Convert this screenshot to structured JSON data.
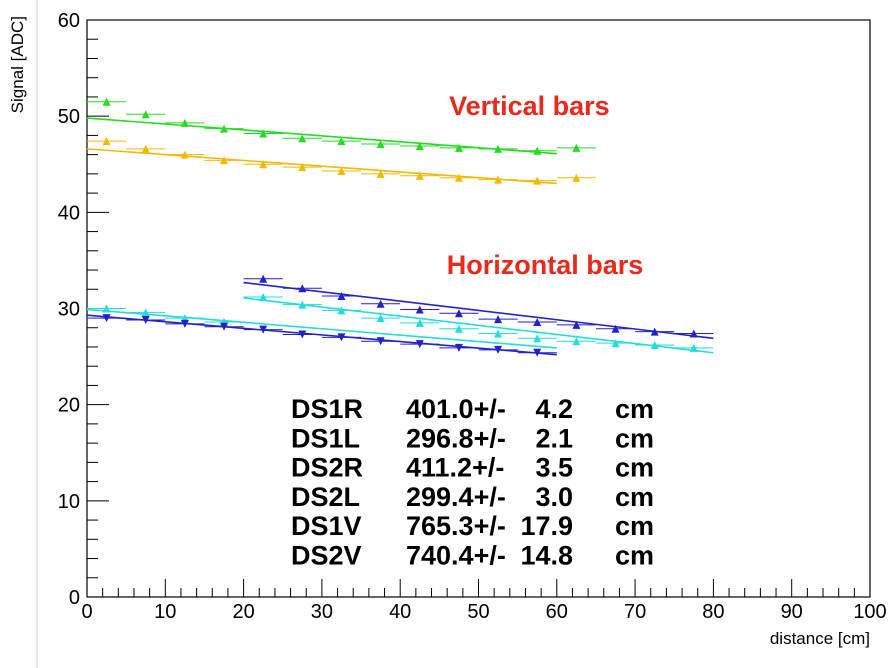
{
  "chart_data": {
    "type": "scatter",
    "xlabel": "distance [cm]",
    "ylabel": "Signal [ADC]",
    "xlim": [
      0,
      100
    ],
    "ylim": [
      0,
      60
    ],
    "x_ticks": [
      "0",
      "10",
      "20",
      "30",
      "40",
      "50",
      "60",
      "70",
      "80",
      "90",
      "100"
    ],
    "y_ticks": [
      "0",
      "10",
      "20",
      "30",
      "40",
      "50",
      "60"
    ],
    "grid": false,
    "series": [
      {
        "color": "#22dd22",
        "marker": "triangle-up",
        "x": [
          2.5,
          7.5,
          12.5,
          17.5,
          22.5,
          27.5,
          32.5,
          37.5,
          42.5,
          47.5,
          52.5,
          57.5,
          62.5
        ],
        "y": [
          51.5,
          50.2,
          49.3,
          48.7,
          48.2,
          47.7,
          47.4,
          47.1,
          46.9,
          46.7,
          46.6,
          46.4,
          46.7
        ],
        "fit": {
          "x": [
            0,
            60
          ],
          "y": [
            49.8,
            46.1
          ]
        }
      },
      {
        "color": "#f5b800",
        "marker": "triangle-up",
        "x": [
          2.5,
          7.5,
          12.5,
          17.5,
          22.5,
          27.5,
          32.5,
          37.5,
          42.5,
          47.5,
          52.5,
          57.5,
          62.5
        ],
        "y": [
          47.4,
          46.6,
          46.0,
          45.4,
          45.0,
          44.7,
          44.3,
          44.0,
          43.8,
          43.6,
          43.4,
          43.3,
          43.6
        ],
        "fit": {
          "x": [
            0,
            60
          ],
          "y": [
            46.6,
            43.0
          ]
        }
      },
      {
        "color": "#2222cc",
        "marker": "triangle-up",
        "x": [
          22.5,
          27.5,
          32.5,
          37.5,
          42.5,
          47.5,
          52.5,
          57.5,
          62.5,
          67.5,
          72.5,
          77.5
        ],
        "y": [
          33.1,
          32.1,
          31.3,
          30.5,
          29.9,
          29.5,
          28.9,
          28.6,
          28.3,
          27.9,
          27.6,
          27.4
        ],
        "fit": {
          "x": [
            20,
            80
          ],
          "y": [
            32.7,
            26.9
          ]
        }
      },
      {
        "color": "#22dddd",
        "marker": "triangle-up",
        "x": [
          2.5,
          7.5,
          12.5,
          17.5,
          22.5,
          27.5,
          32.5,
          37.5,
          42.5,
          47.5,
          52.5,
          57.5,
          62.5,
          67.5,
          72.5,
          77.5
        ],
        "y": [
          30.0,
          29.6,
          29.0,
          28.6,
          31.2,
          30.4,
          29.8,
          29.0,
          28.5,
          27.9,
          27.4,
          26.9,
          26.6,
          26.4,
          26.2,
          25.9
        ],
        "fit_segments": [
          {
            "x": [
              0,
              60
            ],
            "y": [
              29.9,
              25.9
            ]
          },
          {
            "x": [
              20,
              80
            ],
            "y": [
              31.1,
              25.4
            ]
          }
        ]
      },
      {
        "color": "#2222cc",
        "marker": "triangle-down",
        "x": [
          2.5,
          7.5,
          12.5,
          17.5,
          22.5,
          27.5,
          32.5,
          37.5,
          42.5,
          47.5,
          52.5,
          57.5
        ],
        "y": [
          29.0,
          28.8,
          28.4,
          28.1,
          27.8,
          27.3,
          27.0,
          26.6,
          26.3,
          25.9,
          25.7,
          25.4
        ],
        "fit": {
          "x": [
            0,
            60
          ],
          "y": [
            29.3,
            25.2
          ]
        }
      }
    ],
    "annotations": [
      {
        "text": "Vertical bars",
        "x": 56.5,
        "y": 50.1
      },
      {
        "text": "Horizontal bars",
        "x": 58.5,
        "y": 33.6
      }
    ],
    "table": [
      {
        "name": "DS1R",
        "value": "401.0+/-",
        "err": "4.2",
        "unit": "cm"
      },
      {
        "name": "DS1L",
        "value": "296.8+/-",
        "err": "2.1",
        "unit": "cm"
      },
      {
        "name": "DS2R",
        "value": "411.2+/-",
        "err": "3.5",
        "unit": "cm"
      },
      {
        "name": "DS2L",
        "value": "299.4+/-",
        "err": "3.0",
        "unit": "cm"
      },
      {
        "name": "DS1V",
        "value": "765.3+/-",
        "err": "17.9",
        "unit": "cm"
      },
      {
        "name": "DS2V",
        "value": "740.4+/-",
        "err": "14.8",
        "unit": "cm"
      }
    ]
  }
}
